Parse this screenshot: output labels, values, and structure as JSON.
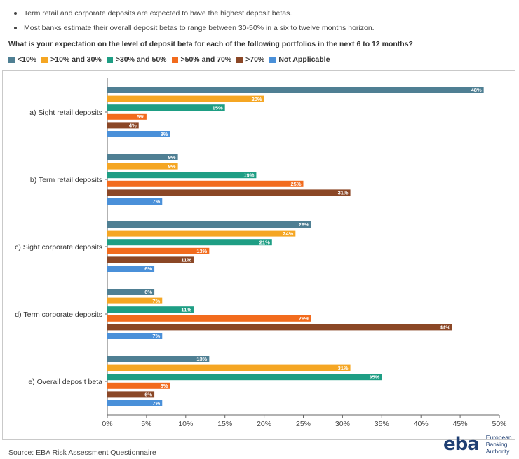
{
  "bullets": [
    "Term retail and corporate deposits are expected to have the highest deposit betas.",
    "Most banks estimate their overall deposit betas to range between 30-50% in a six to twelve months horizon."
  ],
  "question": "What is your expectation on the level of deposit beta for each of the following portfolios in the next 6 to 12 months?",
  "source": "Source: EBA Risk Assessment Questionnaire",
  "logo": {
    "mark": "eba",
    "lines": [
      "European",
      "Banking",
      "Authority"
    ]
  },
  "chart_data": {
    "type": "bar",
    "orientation": "horizontal",
    "categories": [
      "a) Sight retail deposits",
      "b) Term retail deposits",
      "c) Sight corporate deposits",
      "d) Term corporate deposits",
      "e) Overall deposit beta"
    ],
    "series": [
      {
        "name": "<10%",
        "color": "#4f7f93",
        "values": [
          48,
          9,
          26,
          6,
          13
        ]
      },
      {
        "name": ">10% and 30%",
        "color": "#f5a623",
        "values": [
          20,
          9,
          24,
          7,
          31
        ]
      },
      {
        "name": ">30% and 50%",
        "color": "#1e9e84",
        "values": [
          15,
          19,
          21,
          11,
          35
        ]
      },
      {
        "name": ">50% and 70%",
        "color": "#f26b1d",
        "values": [
          5,
          25,
          13,
          26,
          8
        ]
      },
      {
        "name": ">70%",
        "color": "#8b4726",
        "values": [
          4,
          31,
          11,
          44,
          6
        ]
      },
      {
        "name": "Not Applicable",
        "color": "#4a90d9",
        "values": [
          8,
          7,
          6,
          7,
          7
        ]
      }
    ],
    "xlim": [
      0,
      50
    ],
    "xticks": [
      "0%",
      "5%",
      "10%",
      "15%",
      "20%",
      "25%",
      "30%",
      "35%",
      "40%",
      "45%",
      "50%"
    ],
    "value_suffix": "%",
    "legend_position": "top-left",
    "grid": false
  }
}
